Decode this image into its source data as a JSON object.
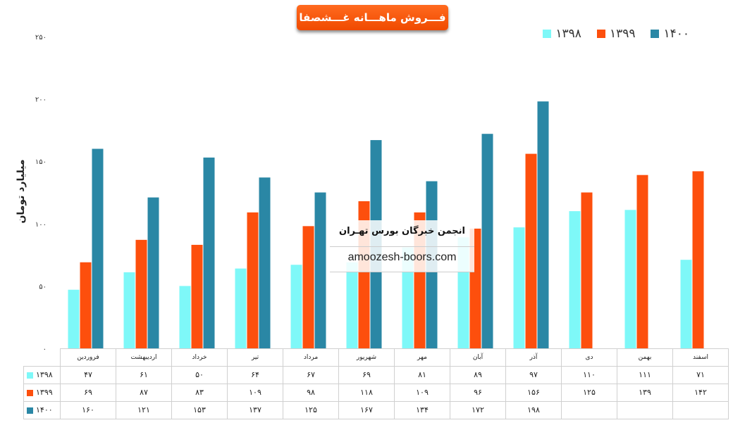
{
  "title": "فـــروش ماهـــانه غـــشصفا",
  "legend": [
    "۱۳۹۸",
    "۱۳۹۹",
    "۱۴۰۰"
  ],
  "watermark": {
    "name": "انجمن خبرگان بورس تهـران",
    "url": "amoozesh-boors.com"
  },
  "chart_data": {
    "type": "bar",
    "title": "فـــروش ماهـــانه غـــشصفا",
    "ylabel": "میلیارد تومان",
    "xlabel": "",
    "ylim": [
      0,
      250
    ],
    "yticks": [
      0,
      50,
      100,
      150,
      200,
      250
    ],
    "ytick_labels": [
      "۰",
      "۵۰",
      "۱۰۰",
      "۱۵۰",
      "۲۰۰",
      "۲۵۰"
    ],
    "grid": false,
    "legend_position": "top-right",
    "categories": [
      "فروردین",
      "اردیبهشت",
      "خرداد",
      "تیر",
      "مرداد",
      "شهریور",
      "مهر",
      "آبان",
      "آذر",
      "دی",
      "بهمن",
      "اسفند"
    ],
    "series": [
      {
        "name": "۱۳۹۸",
        "color": "#7ef8f8",
        "values": [
          47,
          61,
          50,
          64,
          67,
          69,
          81,
          89,
          97,
          110,
          111,
          71
        ],
        "labels": [
          "۴۷",
          "۶۱",
          "۵۰",
          "۶۴",
          "۶۷",
          "۶۹",
          "۸۱",
          "۸۹",
          "۹۷",
          "۱۱۰",
          "۱۱۱",
          "۷۱"
        ]
      },
      {
        "name": "۱۳۹۹",
        "color": "#fd4f0d",
        "values": [
          69,
          87,
          83,
          109,
          98,
          118,
          109,
          96,
          156,
          125,
          139,
          142
        ],
        "labels": [
          "۶۹",
          "۸۷",
          "۸۳",
          "۱۰۹",
          "۹۸",
          "۱۱۸",
          "۱۰۹",
          "۹۶",
          "۱۵۶",
          "۱۲۵",
          "۱۳۹",
          "۱۴۲"
        ]
      },
      {
        "name": "۱۴۰۰",
        "color": "#2a87a5",
        "values": [
          160,
          121,
          153,
          137,
          125,
          167,
          134,
          172,
          198,
          null,
          null,
          null
        ],
        "labels": [
          "۱۶۰",
          "۱۲۱",
          "۱۵۳",
          "۱۳۷",
          "۱۲۵",
          "۱۶۷",
          "۱۳۴",
          "۱۷۲",
          "۱۹۸",
          "",
          "",
          ""
        ]
      }
    ]
  }
}
